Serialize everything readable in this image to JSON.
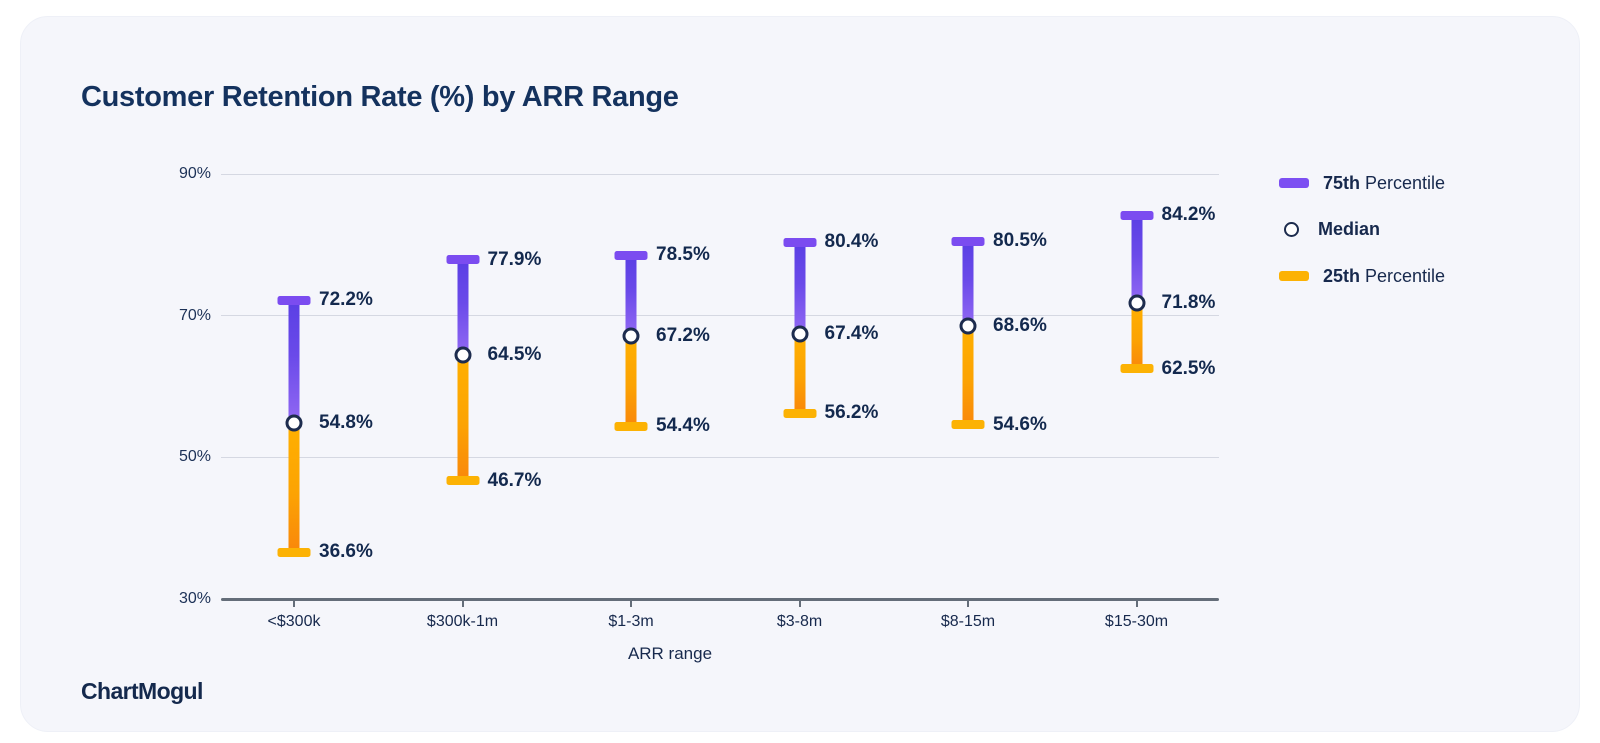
{
  "title": "Customer Retention Rate (%) by ARR Range",
  "branding": {
    "logo_text": "ChartMogul"
  },
  "legend": [
    {
      "label_bold": "75th",
      "label_rest": " Percentile",
      "marker": "bar-purple"
    },
    {
      "label_bold": "Median",
      "label_rest": "",
      "marker": "circle-outline"
    },
    {
      "label_bold": "25th",
      "label_rest": " Percentile",
      "marker": "bar-yellow"
    }
  ],
  "chart_data": {
    "type": "dumbbell-range",
    "title": "Customer Retention Rate (%) by ARR Range",
    "xlabel": "ARR range",
    "ylabel": "",
    "ylim": [
      30,
      90
    ],
    "yticks": [
      90,
      70,
      50,
      30
    ],
    "ytick_suffix": "%",
    "grid": true,
    "legend_position": "right",
    "categories": [
      "<$300k",
      "$300k-1m",
      "$1-3m",
      "$3-8m",
      "$8-15m",
      "$15-30m"
    ],
    "series": [
      {
        "name": "75th Percentile",
        "values": [
          72.2,
          77.9,
          78.5,
          80.4,
          80.5,
          84.2
        ]
      },
      {
        "name": "Median",
        "values": [
          54.8,
          64.5,
          67.2,
          67.4,
          68.6,
          71.8
        ]
      },
      {
        "name": "25th Percentile",
        "values": [
          36.6,
          46.7,
          54.4,
          56.2,
          54.6,
          62.5
        ]
      }
    ],
    "value_label_suffix": "%",
    "colors": {
      "p75_cap": "#7b4cf0",
      "p25_cap": "#fcb204",
      "stem_purple_top": "#5a3fe4",
      "stem_purple_bottom": "#9168f3",
      "stem_yellow_top": "#ffb000",
      "stem_yellow_bottom": "#f9870b",
      "median_fill": "#ffffff",
      "median_stroke": "#1d2c4e",
      "gridline": "#d5d8e2",
      "axis_line": "#646d79",
      "label_text": "#13294e",
      "title_text": "#14325e",
      "card_background": "#f5f6fb",
      "page_background": "#ffffff"
    }
  }
}
